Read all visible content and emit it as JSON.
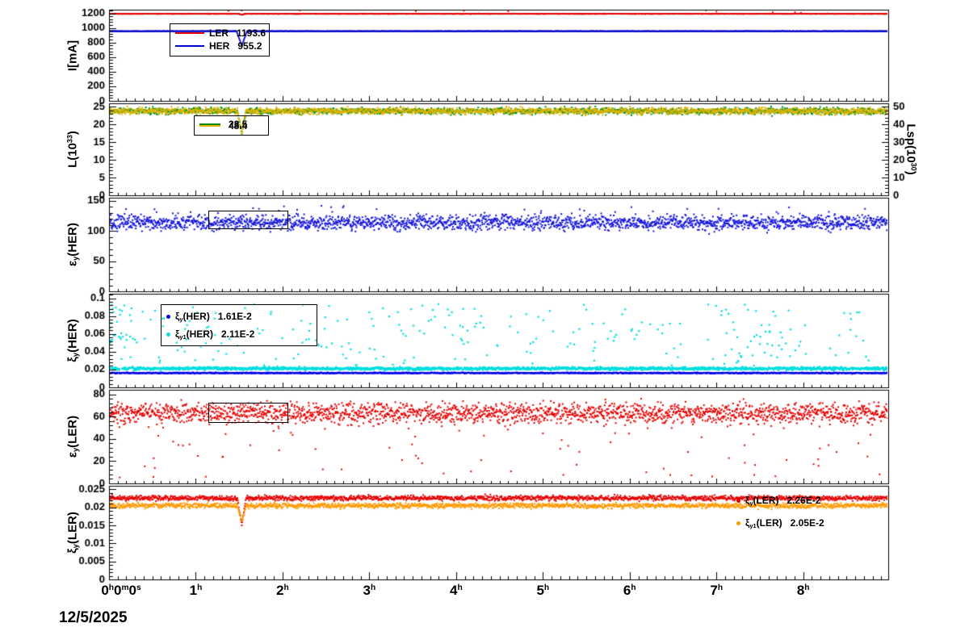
{
  "figure": {
    "background": "#ffffff",
    "axis_color": "#000000",
    "date_label": "12/5/2025"
  },
  "chart_data": {
    "type": "line",
    "title": "",
    "grid": false,
    "x": {
      "min": 0,
      "max": 8.98,
      "unit": "h",
      "major_tick_step_hours": 1,
      "minor_tick_step_hours": 0.1,
      "tick_positions": [
        0,
        1,
        2,
        3,
        4,
        5,
        6,
        7,
        8
      ],
      "tick_labels": [
        [
          {
            "t": "0"
          },
          {
            "t": "h",
            "sup": true
          },
          {
            "t": "0"
          },
          {
            "t": "m",
            "sup": true
          },
          {
            "t": "0"
          },
          {
            "t": "s",
            "sup": true
          }
        ],
        [
          {
            "t": "1"
          },
          {
            "t": "h",
            "sup": true
          }
        ],
        [
          {
            "t": "2"
          },
          {
            "t": "h",
            "sup": true
          }
        ],
        [
          {
            "t": "3"
          },
          {
            "t": "h",
            "sup": true
          }
        ],
        [
          {
            "t": "4"
          },
          {
            "t": "h",
            "sup": true
          }
        ],
        [
          {
            "t": "5"
          },
          {
            "t": "h",
            "sup": true
          }
        ],
        [
          {
            "t": "6"
          },
          {
            "t": "h",
            "sup": true
          }
        ],
        [
          {
            "t": "7"
          },
          {
            "t": "h",
            "sup": true
          }
        ],
        [
          {
            "t": "8"
          },
          {
            "t": "h",
            "sup": true
          }
        ]
      ]
    },
    "panels": [
      {
        "name": "beam-current",
        "ylabel": [
          {
            "t": "I[mA]"
          }
        ],
        "ylim": [
          0,
          1250
        ],
        "yticks": [
          0,
          200,
          400,
          600,
          800,
          1000,
          1200
        ],
        "ytick_labels": [
          "0",
          "200",
          "400",
          "600",
          "800",
          "1000",
          "1200"
        ],
        "series": [
          {
            "name": "LER",
            "color": "#e60000",
            "style": "band",
            "marker": 1.8,
            "baseline": 1193.6,
            "noise": 1.5,
            "outlier_prob": 0.004,
            "outlier_range": [
              1205,
              1242
            ],
            "dip": {
              "t": 1.53,
              "width": 0.035,
              "min": 1178
            }
          },
          {
            "name": "HER",
            "color": "#0000cc",
            "style": "band",
            "marker": 1.8,
            "baseline": 955.2,
            "noise": 1.2,
            "dip": {
              "t": 1.53,
              "width": 0.06,
              "min": 755
            }
          }
        ],
        "legend": [
          {
            "label": [
              {
                "t": "LER"
              }
            ],
            "value": "1193.6",
            "color": "#e60000"
          },
          {
            "label": [
              {
                "t": "HER"
              }
            ],
            "value": "955.2",
            "color": "#0000cc"
          }
        ]
      },
      {
        "name": "luminosity",
        "ylabel": [
          {
            "t": "L(10"
          },
          {
            "t": "33",
            "sup": true
          },
          {
            "t": ")"
          }
        ],
        "ylim": [
          0,
          26
        ],
        "yticks": [
          0,
          5,
          10,
          15,
          20,
          25
        ],
        "ytick_labels": [
          "0",
          "5",
          "10",
          "15",
          "20",
          "25"
        ],
        "y2label": [
          {
            "t": "Lsp(10"
          },
          {
            "t": "30",
            "sup": true
          },
          {
            "t": ")"
          }
        ],
        "y2lim": [
          0,
          52
        ],
        "y2ticks": [
          0,
          10,
          20,
          30,
          40,
          50
        ],
        "y2tick_labels": [
          "0",
          "10",
          "20",
          "30",
          "40",
          "50"
        ],
        "series": [
          {
            "name": "L",
            "color": "#0a8a0a",
            "style": "band",
            "marker": 2,
            "baseline": 23.8,
            "noise": 0.45,
            "dip": {
              "t": 1.53,
              "width": 0.05,
              "min": 17.2
            }
          },
          {
            "name": "Lsp",
            "axis": "y2",
            "color": "#e0b400",
            "style": "band",
            "marker": 2,
            "baseline": 47.6,
            "noise": 0.9,
            "dip": {
              "t": 1.53,
              "width": 0.05,
              "min": 34.8
            }
          }
        ],
        "legend": [
          {
            "label": [],
            "value": "23.5",
            "color": "#0a8a0a"
          },
          {
            "label": [],
            "value": "48.4",
            "color": "#e0b400"
          }
        ]
      },
      {
        "name": "emittance-her",
        "ylabel": [
          {
            "t": "ε"
          },
          {
            "t": "y",
            "sub": true
          },
          {
            "t": "(HER)"
          }
        ],
        "ylim": [
          0,
          155
        ],
        "yticks": [
          0,
          50,
          100,
          150
        ],
        "ytick_labels": [
          "0",
          "50",
          "100",
          "150"
        ],
        "series": [
          {
            "name": "ey_HER",
            "color": "#1414dd",
            "style": "scatter",
            "marker": 2,
            "baseline": 114,
            "noise": 6,
            "outlier_prob": 0.012,
            "outlier_range": [
              126,
              142
            ]
          }
        ],
        "legend": []
      },
      {
        "name": "xi-her",
        "ylabel": [
          {
            "t": "ξ"
          },
          {
            "t": "y",
            "sub": true
          },
          {
            "t": "(HER)"
          }
        ],
        "ylim": [
          0,
          0.105
        ],
        "yticks": [
          0,
          0.02,
          0.04,
          0.06,
          0.08,
          0.1
        ],
        "ytick_labels": [
          "0",
          "0.02",
          "0.04",
          "0.06",
          "0.08",
          "0.1"
        ],
        "series": [
          {
            "name": "xiy1_HER",
            "color": "#00dede",
            "style": "scatter",
            "marker": 2.2,
            "baseline": 0.0211,
            "noise": 0.0008,
            "outlier_prob": 0.12,
            "outlier_range": [
              0.024,
              0.094
            ],
            "early_cluster": {
              "t_max": 0.3,
              "prob": 0.35,
              "range": [
                0.05,
                0.092
              ]
            }
          },
          {
            "name": "xiy_HER",
            "color": "#0000ee",
            "style": "band",
            "marker": 2,
            "baseline": 0.0161,
            "noise": 0.0003
          }
        ],
        "legend": [
          {
            "label": [
              {
                "t": "ξ"
              },
              {
                "t": "y",
                "sub": true
              },
              {
                "t": "(HER)"
              }
            ],
            "value": "1.61E-2",
            "color": "#0000ee"
          },
          {
            "label": [
              {
                "t": "ξ"
              },
              {
                "t": "y1",
                "sub": true
              },
              {
                "t": "(HER)"
              }
            ],
            "value": "2.11E-2",
            "color": "#00dede"
          }
        ]
      },
      {
        "name": "emittance-ler",
        "ylabel": [
          {
            "t": "ε"
          },
          {
            "t": "y",
            "sub": true
          },
          {
            "t": "(LER)"
          }
        ],
        "ylim": [
          0,
          84
        ],
        "yticks": [
          0,
          20,
          40,
          60,
          80
        ],
        "ytick_labels": [
          "0",
          "20",
          "40",
          "60",
          "80"
        ],
        "series": [
          {
            "name": "ey_LER",
            "color": "#e60000",
            "style": "scatter",
            "marker": 2,
            "baseline": 63,
            "noise": 4.5,
            "outlier_prob": 0.03,
            "outlier_range": [
              5,
              52
            ]
          }
        ],
        "legend": []
      },
      {
        "name": "xi-ler",
        "ylabel": [
          {
            "t": "ξ"
          },
          {
            "t": "y",
            "sub": true
          },
          {
            "t": "(LER)"
          }
        ],
        "ylim": [
          0,
          0.026
        ],
        "yticks": [
          0,
          0.005,
          0.01,
          0.015,
          0.02,
          0.025
        ],
        "ytick_labels": [
          "0",
          "0.005",
          "0.01",
          "0.015",
          "0.02",
          "0.025"
        ],
        "series": [
          {
            "name": "xiy_LER",
            "color": "#e60000",
            "style": "band",
            "marker": 2,
            "baseline": 0.0226,
            "noise": 0.00035,
            "dip": {
              "t": 1.53,
              "width": 0.05,
              "min": 0.0152
            }
          },
          {
            "name": "xiy1_LER",
            "color": "#ff9900",
            "style": "band",
            "marker": 2,
            "baseline": 0.0205,
            "noise": 0.00035,
            "dip": {
              "t": 1.53,
              "width": 0.05,
              "min": 0.0162
            }
          }
        ],
        "legend": [
          {
            "label": [
              {
                "t": "ξ"
              },
              {
                "t": "y",
                "sub": true
              },
              {
                "t": "(LER)"
              }
            ],
            "value": "2.26E-2",
            "color": "#e60000"
          },
          {
            "label": [
              {
                "t": "ξ"
              },
              {
                "t": "y1",
                "sub": true
              },
              {
                "t": "(LER)"
              }
            ],
            "value": "2.05E-2",
            "color": "#ff9900"
          }
        ]
      }
    ]
  }
}
